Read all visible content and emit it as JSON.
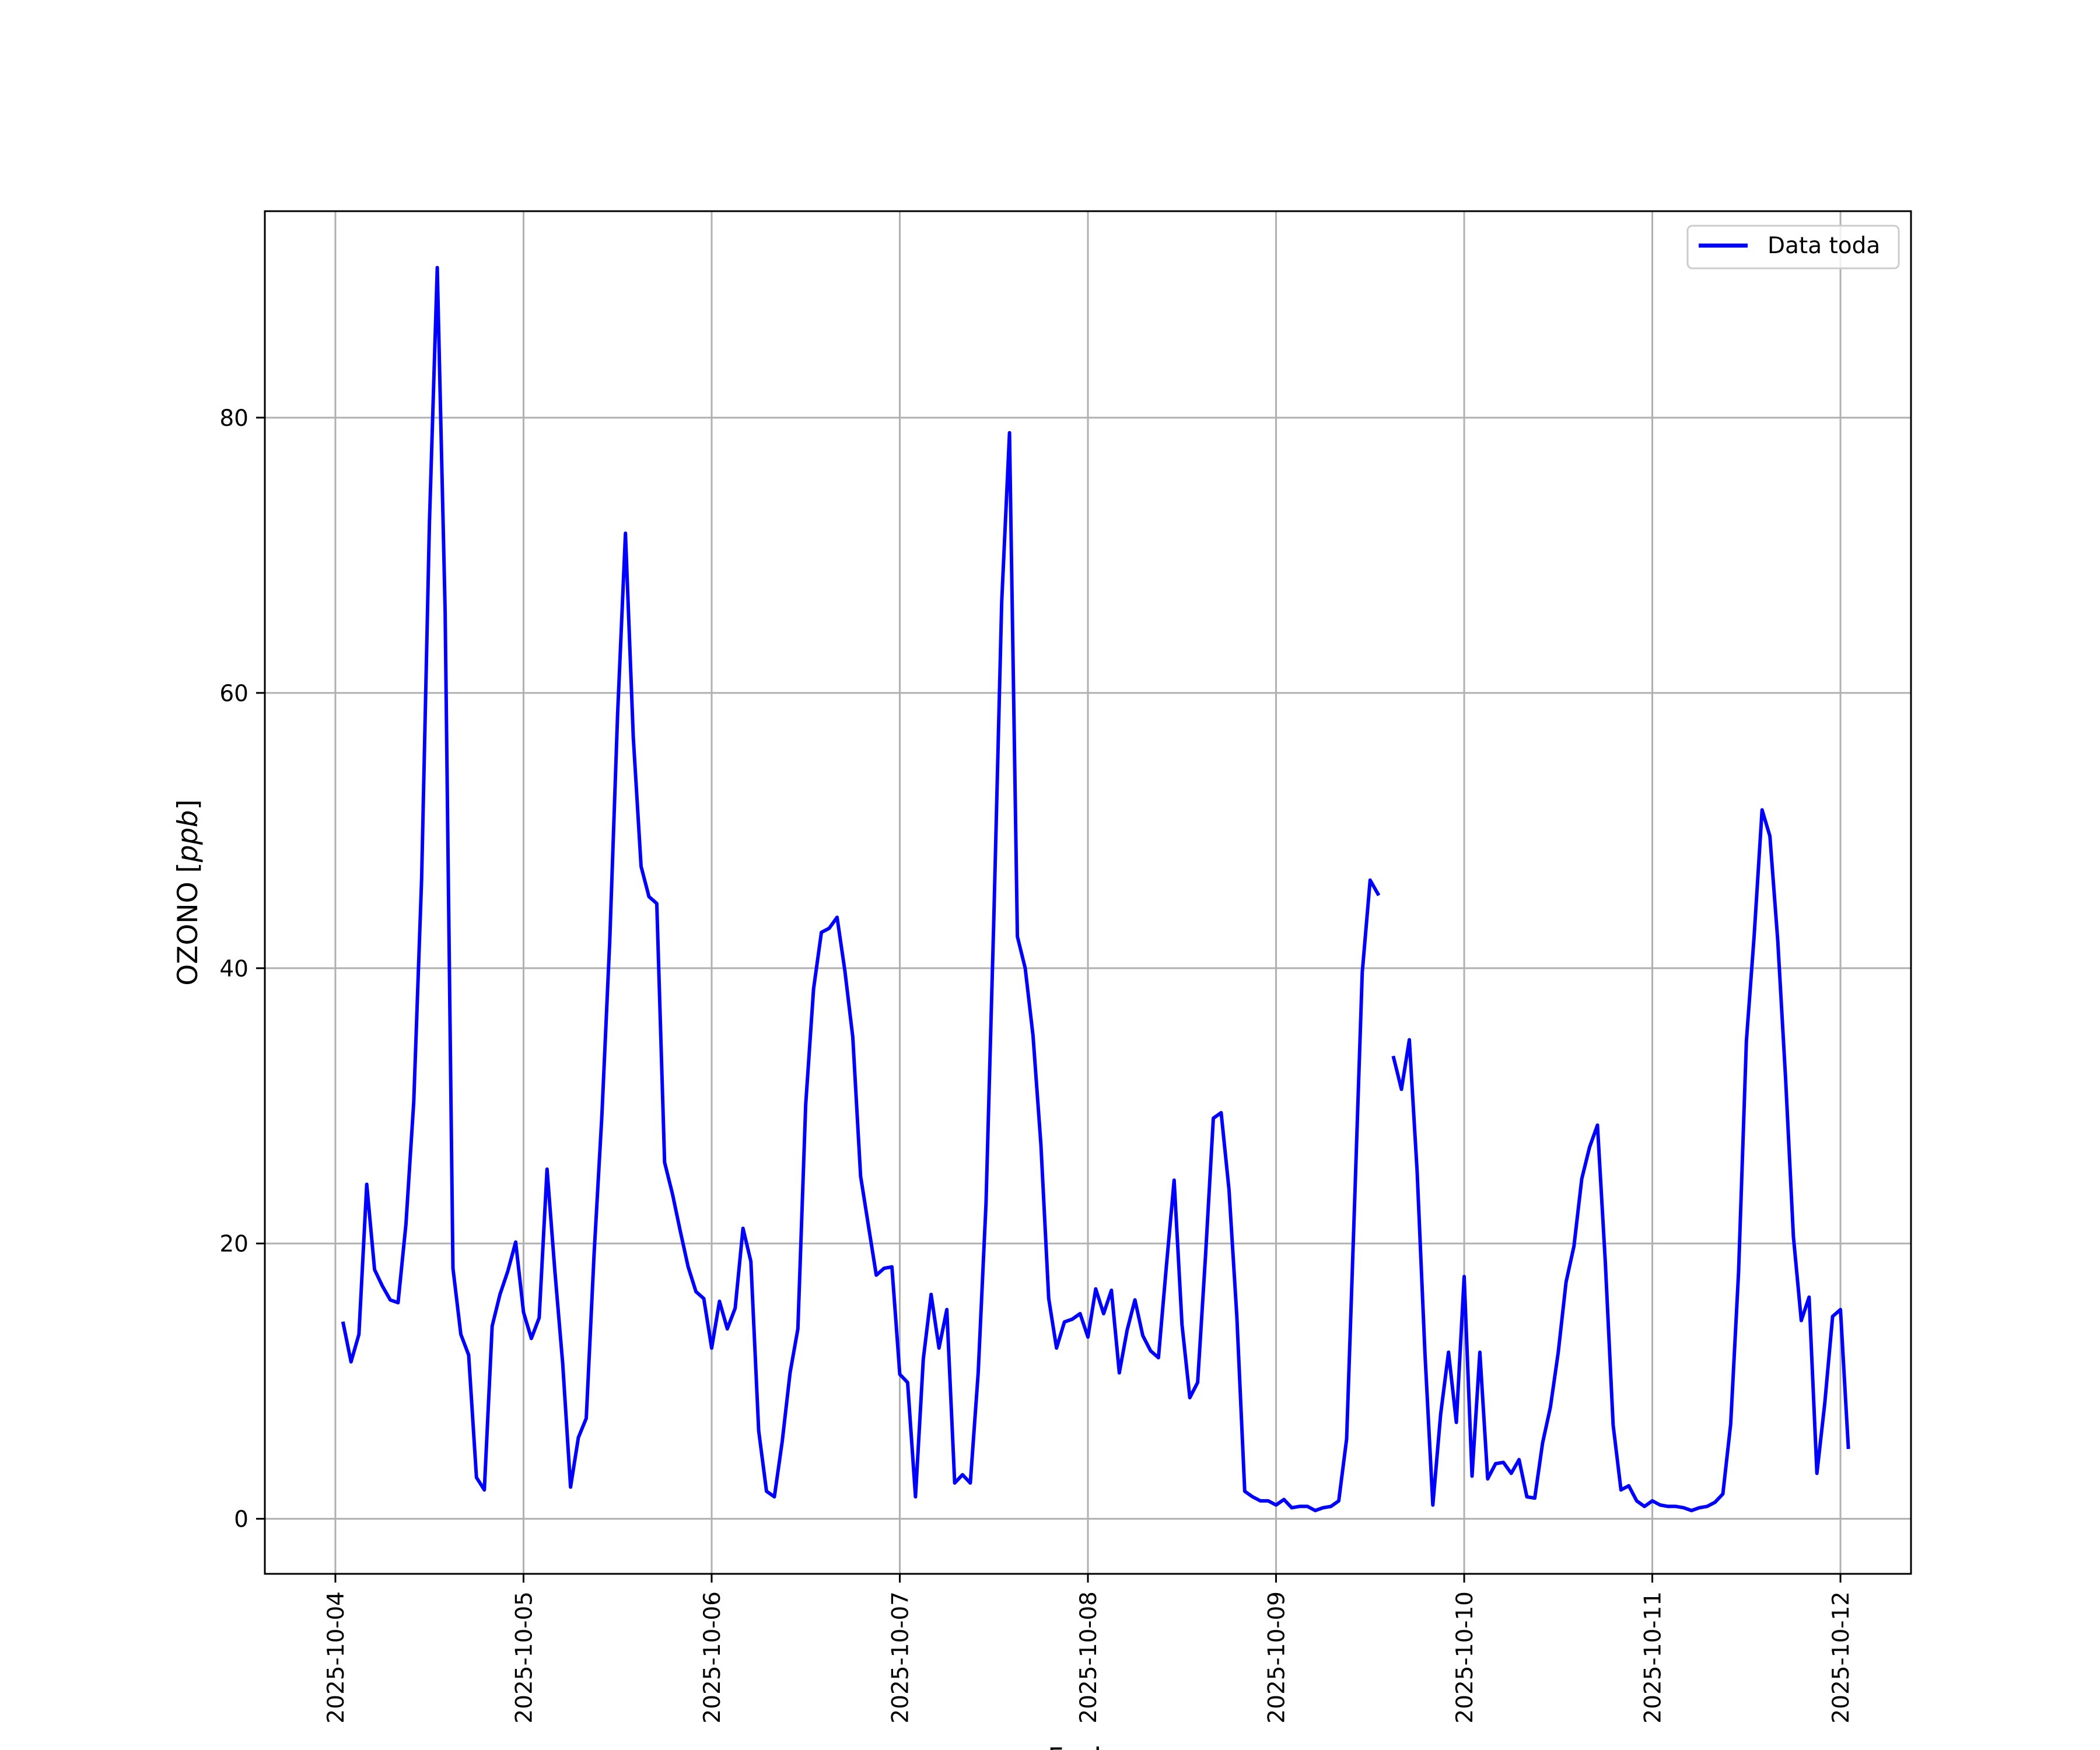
{
  "chart_data": {
    "type": "line",
    "title": "",
    "xlabel": "Fecha",
    "ylabel": "OZONO [ppb]",
    "ylabel_main": "OZONO ",
    "ylabel_unit": "ppb",
    "xlim": [
      "2025-10-03T15:00",
      "2025-10-12T09:00"
    ],
    "ylim": [
      -4,
      95
    ],
    "x_ticks": [
      "2025-10-04",
      "2025-10-05",
      "2025-10-06",
      "2025-10-07",
      "2025-10-08",
      "2025-10-09",
      "2025-10-10",
      "2025-10-11",
      "2025-10-12"
    ],
    "y_ticks": [
      0,
      20,
      40,
      60,
      80
    ],
    "y_tick_labels": [
      "0",
      "20",
      "40",
      "60",
      "80"
    ],
    "grid": true,
    "legend_position": "top-right",
    "series": [
      {
        "name": "Data toda",
        "color": "#0000ff",
        "segments": [
          [
            [
              "2025-10-04T01:00",
              14.2
            ],
            [
              "2025-10-04T02:00",
              11.4
            ],
            [
              "2025-10-04T03:00",
              13.4
            ],
            [
              "2025-10-04T04:00",
              24.3
            ],
            [
              "2025-10-04T05:00",
              18.1
            ],
            [
              "2025-10-04T06:00",
              16.9
            ],
            [
              "2025-10-04T07:00",
              15.9
            ],
            [
              "2025-10-04T08:00",
              15.7
            ],
            [
              "2025-10-04T09:00",
              21.4
            ],
            [
              "2025-10-04T10:00",
              30.3
            ],
            [
              "2025-10-04T11:00",
              46.5
            ],
            [
              "2025-10-04T12:00",
              72.4
            ],
            [
              "2025-10-04T13:00",
              90.9
            ],
            [
              "2025-10-04T14:00",
              65.9
            ],
            [
              "2025-10-04T15:00",
              18.2
            ],
            [
              "2025-10-04T16:00",
              13.4
            ],
            [
              "2025-10-04T17:00",
              11.9
            ],
            [
              "2025-10-04T18:00",
              3.0
            ],
            [
              "2025-10-04T19:00",
              2.1
            ],
            [
              "2025-10-04T20:00",
              14.0
            ],
            [
              "2025-10-04T21:00",
              16.3
            ],
            [
              "2025-10-04T22:00",
              18.0
            ],
            [
              "2025-10-04T23:00",
              20.1
            ],
            [
              "2025-10-05T00:00",
              15.0
            ],
            [
              "2025-10-05T01:00",
              13.1
            ],
            [
              "2025-10-05T02:00",
              14.6
            ],
            [
              "2025-10-05T03:00",
              25.4
            ],
            [
              "2025-10-05T04:00",
              18.0
            ],
            [
              "2025-10-05T05:00",
              11.3
            ],
            [
              "2025-10-05T06:00",
              2.3
            ],
            [
              "2025-10-05T07:00",
              5.9
            ],
            [
              "2025-10-05T08:00",
              7.3
            ],
            [
              "2025-10-05T09:00",
              19.2
            ],
            [
              "2025-10-05T10:00",
              29.3
            ],
            [
              "2025-10-05T11:00",
              42.0
            ],
            [
              "2025-10-05T12:00",
              58.4
            ],
            [
              "2025-10-05T13:00",
              71.6
            ],
            [
              "2025-10-05T14:00",
              56.8
            ],
            [
              "2025-10-05T15:00",
              47.4
            ],
            [
              "2025-10-05T16:00",
              45.2
            ],
            [
              "2025-10-05T17:00",
              44.7
            ],
            [
              "2025-10-05T18:00",
              25.9
            ],
            [
              "2025-10-05T19:00",
              23.6
            ],
            [
              "2025-10-05T20:00",
              20.9
            ],
            [
              "2025-10-05T21:00",
              18.3
            ],
            [
              "2025-10-05T22:00",
              16.5
            ],
            [
              "2025-10-05T23:00",
              16.0
            ],
            [
              "2025-10-06T00:00",
              12.4
            ],
            [
              "2025-10-06T01:00",
              15.8
            ],
            [
              "2025-10-06T02:00",
              13.8
            ],
            [
              "2025-10-06T03:00",
              15.3
            ],
            [
              "2025-10-06T04:00",
              21.1
            ],
            [
              "2025-10-06T05:00",
              18.7
            ],
            [
              "2025-10-06T06:00",
              6.4
            ],
            [
              "2025-10-06T07:00",
              2.0
            ],
            [
              "2025-10-06T08:00",
              1.6
            ],
            [
              "2025-10-06T09:00",
              5.6
            ],
            [
              "2025-10-06T10:00",
              10.6
            ],
            [
              "2025-10-06T11:00",
              13.8
            ],
            [
              "2025-10-06T12:00",
              30.1
            ],
            [
              "2025-10-06T13:00",
              38.5
            ],
            [
              "2025-10-06T14:00",
              42.6
            ],
            [
              "2025-10-06T15:00",
              42.9
            ],
            [
              "2025-10-06T16:00",
              43.7
            ],
            [
              "2025-10-06T17:00",
              39.8
            ],
            [
              "2025-10-06T18:00",
              35.0
            ],
            [
              "2025-10-06T19:00",
              24.9
            ],
            [
              "2025-10-06T20:00",
              21.3
            ],
            [
              "2025-10-06T21:00",
              17.7
            ],
            [
              "2025-10-06T22:00",
              18.2
            ],
            [
              "2025-10-06T23:00",
              18.3
            ],
            [
              "2025-10-07T00:00",
              10.5
            ],
            [
              "2025-10-07T01:00",
              9.9
            ],
            [
              "2025-10-07T02:00",
              1.6
            ],
            [
              "2025-10-07T03:00",
              11.6
            ],
            [
              "2025-10-07T04:00",
              16.3
            ],
            [
              "2025-10-07T05:00",
              12.4
            ],
            [
              "2025-10-07T06:00",
              15.2
            ],
            [
              "2025-10-07T07:00",
              2.6
            ],
            [
              "2025-10-07T08:00",
              3.2
            ],
            [
              "2025-10-07T09:00",
              2.6
            ],
            [
              "2025-10-07T10:00",
              10.6
            ],
            [
              "2025-10-07T11:00",
              22.9
            ],
            [
              "2025-10-07T12:00",
              43.6
            ],
            [
              "2025-10-07T13:00",
              66.6
            ],
            [
              "2025-10-07T14:00",
              78.9
            ],
            [
              "2025-10-07T15:00",
              42.3
            ],
            [
              "2025-10-07T16:00",
              40.0
            ],
            [
              "2025-10-07T17:00",
              35.1
            ],
            [
              "2025-10-07T18:00",
              27.2
            ],
            [
              "2025-10-07T19:00",
              16.0
            ],
            [
              "2025-10-07T20:00",
              12.4
            ],
            [
              "2025-10-07T21:00",
              14.3
            ],
            [
              "2025-10-07T22:00",
              14.5
            ],
            [
              "2025-10-07T23:00",
              14.9
            ],
            [
              "2025-10-08T00:00",
              13.2
            ],
            [
              "2025-10-08T01:00",
              16.7
            ],
            [
              "2025-10-08T02:00",
              14.9
            ],
            [
              "2025-10-08T03:00",
              16.6
            ],
            [
              "2025-10-08T04:00",
              10.6
            ],
            [
              "2025-10-08T05:00",
              13.7
            ],
            [
              "2025-10-08T06:00",
              15.9
            ],
            [
              "2025-10-08T07:00",
              13.3
            ],
            [
              "2025-10-08T08:00",
              12.2
            ],
            [
              "2025-10-08T09:00",
              11.7
            ],
            [
              "2025-10-08T10:00",
              18.3
            ],
            [
              "2025-10-08T11:00",
              24.6
            ],
            [
              "2025-10-08T12:00",
              14.1
            ],
            [
              "2025-10-08T13:00",
              8.8
            ],
            [
              "2025-10-08T14:00",
              9.9
            ],
            [
              "2025-10-08T15:00",
              19.1
            ],
            [
              "2025-10-08T16:00",
              29.1
            ],
            [
              "2025-10-08T17:00",
              29.5
            ],
            [
              "2025-10-08T18:00",
              23.9
            ],
            [
              "2025-10-08T19:00",
              14.7
            ],
            [
              "2025-10-08T20:00",
              2.0
            ],
            [
              "2025-10-08T21:00",
              1.6
            ],
            [
              "2025-10-08T22:00",
              1.3
            ],
            [
              "2025-10-08T23:00",
              1.3
            ],
            [
              "2025-10-09T00:00",
              1.0
            ],
            [
              "2025-10-09T01:00",
              1.4
            ],
            [
              "2025-10-09T02:00",
              0.8
            ],
            [
              "2025-10-09T03:00",
              0.9
            ],
            [
              "2025-10-09T04:00",
              0.9
            ],
            [
              "2025-10-09T05:00",
              0.6
            ],
            [
              "2025-10-09T06:00",
              0.8
            ],
            [
              "2025-10-09T07:00",
              0.9
            ],
            [
              "2025-10-09T08:00",
              1.3
            ],
            [
              "2025-10-09T09:00",
              5.8
            ],
            [
              "2025-10-09T10:00",
              22.6
            ],
            [
              "2025-10-09T11:00",
              39.7
            ],
            [
              "2025-10-09T12:00",
              46.4
            ],
            [
              "2025-10-09T13:00",
              45.4
            ]
          ],
          [
            [
              "2025-10-09T15:00",
              33.5
            ],
            [
              "2025-10-09T16:00",
              31.2
            ],
            [
              "2025-10-09T17:00",
              34.8
            ],
            [
              "2025-10-09T18:00",
              25.2
            ],
            [
              "2025-10-09T19:00",
              12.0
            ],
            [
              "2025-10-09T20:00",
              1.0
            ],
            [
              "2025-10-09T21:00",
              7.6
            ],
            [
              "2025-10-09T22:00",
              12.1
            ],
            [
              "2025-10-09T23:00",
              7.0
            ],
            [
              "2025-10-10T00:00",
              17.6
            ],
            [
              "2025-10-10T01:00",
              3.1
            ],
            [
              "2025-10-10T02:00",
              12.1
            ],
            [
              "2025-10-10T03:00",
              2.9
            ],
            [
              "2025-10-10T04:00",
              4.0
            ],
            [
              "2025-10-10T05:00",
              4.1
            ],
            [
              "2025-10-10T06:00",
              3.3
            ],
            [
              "2025-10-10T07:00",
              4.3
            ],
            [
              "2025-10-10T08:00",
              1.6
            ],
            [
              "2025-10-10T09:00",
              1.5
            ],
            [
              "2025-10-10T10:00",
              5.5
            ],
            [
              "2025-10-10T11:00",
              8.1
            ],
            [
              "2025-10-10T12:00",
              12.1
            ],
            [
              "2025-10-10T13:00",
              17.2
            ],
            [
              "2025-10-10T14:00",
              19.8
            ],
            [
              "2025-10-10T15:00",
              24.7
            ],
            [
              "2025-10-10T16:00",
              27.0
            ],
            [
              "2025-10-10T17:00",
              28.6
            ],
            [
              "2025-10-10T18:00",
              18.7
            ],
            [
              "2025-10-10T19:00",
              6.8
            ],
            [
              "2025-10-10T20:00",
              2.1
            ],
            [
              "2025-10-10T21:00",
              2.4
            ],
            [
              "2025-10-10T22:00",
              1.3
            ],
            [
              "2025-10-10T23:00",
              0.9
            ],
            [
              "2025-10-11T00:00",
              1.3
            ],
            [
              "2025-10-11T01:00",
              1.0
            ],
            [
              "2025-10-11T02:00",
              0.9
            ],
            [
              "2025-10-11T03:00",
              0.9
            ],
            [
              "2025-10-11T04:00",
              0.8
            ],
            [
              "2025-10-11T05:00",
              0.6
            ],
            [
              "2025-10-11T06:00",
              0.8
            ],
            [
              "2025-10-11T07:00",
              0.9
            ],
            [
              "2025-10-11T08:00",
              1.2
            ],
            [
              "2025-10-11T09:00",
              1.8
            ],
            [
              "2025-10-11T10:00",
              6.9
            ],
            [
              "2025-10-11T11:00",
              17.9
            ],
            [
              "2025-10-11T12:00",
              34.7
            ],
            [
              "2025-10-11T13:00",
              42.4
            ],
            [
              "2025-10-11T14:00",
              51.5
            ],
            [
              "2025-10-11T15:00",
              49.6
            ],
            [
              "2025-10-11T16:00",
              42.0
            ],
            [
              "2025-10-11T17:00",
              32.0
            ],
            [
              "2025-10-11T18:00",
              20.5
            ],
            [
              "2025-10-11T19:00",
              14.4
            ],
            [
              "2025-10-11T20:00",
              16.1
            ],
            [
              "2025-10-11T21:00",
              3.3
            ],
            [
              "2025-10-11T22:00",
              8.4
            ],
            [
              "2025-10-11T23:00",
              14.7
            ],
            [
              "2025-10-12T00:00",
              15.2
            ],
            [
              "2025-10-12T01:00",
              5.2
            ]
          ]
        ]
      }
    ]
  }
}
